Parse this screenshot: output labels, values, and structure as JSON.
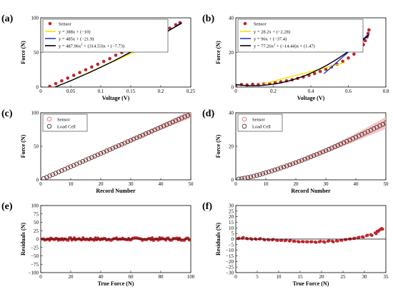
{
  "chart_data": [
    {
      "id": "a",
      "panel_label": "(a)",
      "type": "scatter",
      "xlabel": "Voltage (V)",
      "ylabel": "Force (N)",
      "xlim": [
        0,
        0.25
      ],
      "ylim": [
        0,
        100
      ],
      "xticks": [
        0,
        0.05,
        0.1,
        0.15,
        0.2,
        0.25
      ],
      "xtick_labels": [
        "0",
        "0.05",
        "0.1",
        "0.15",
        "0.2",
        "0.25"
      ],
      "yticks": [
        0,
        50,
        100
      ],
      "ytick_labels": [
        "0",
        "50",
        "100"
      ],
      "grid": false,
      "legend_placement": "top-left",
      "scatter": {
        "name": "Sensor",
        "color": "#c0242c",
        "x": [
          0.015,
          0.025,
          0.035,
          0.045,
          0.055,
          0.065,
          0.075,
          0.085,
          0.095,
          0.105,
          0.115,
          0.125,
          0.135,
          0.145,
          0.155,
          0.165,
          0.175,
          0.185,
          0.195,
          0.205,
          0.215,
          0.225,
          0.232
        ],
        "y": [
          1,
          5,
          9,
          13,
          17,
          21,
          25,
          29,
          33,
          37,
          41,
          46,
          50,
          54,
          58,
          63,
          67,
          72,
          76,
          81,
          85,
          90,
          93
        ]
      },
      "fits": [
        {
          "name": "y = 388x + (−10)",
          "color": "#f2e600",
          "kind": "linear",
          "coef": [
            388,
            -10
          ],
          "x_range": [
            0.06,
            0.16
          ]
        },
        {
          "name": "y = 485x + (−21.9)",
          "color": "#1f3fbf",
          "kind": "linear",
          "coef": [
            485,
            -21.9
          ],
          "x_range": [
            0.14,
            0.235
          ]
        },
        {
          "name": "y = 487.96x",
          "name_sup": "2",
          "name_rest": " + (314.53)x + (−7.73)",
          "color": "#000000",
          "kind": "quadratic",
          "coef": [
            487.96,
            314.53,
            -7.73
          ],
          "x_range": [
            0.02,
            0.235
          ]
        }
      ]
    },
    {
      "id": "b",
      "panel_label": "(b)",
      "type": "scatter",
      "xlabel": "Voltage (V)",
      "ylabel": "Force (N)",
      "xlim": [
        0,
        0.8
      ],
      "ylim": [
        0,
        40
      ],
      "xticks": [
        0,
        0.2,
        0.4,
        0.6,
        0.8
      ],
      "xtick_labels": [
        "0",
        "0.2",
        "0.4",
        "0.6",
        "0.8"
      ],
      "yticks": [
        0,
        20,
        40
      ],
      "ytick_labels": [
        "0",
        "20",
        "40"
      ],
      "grid": false,
      "legend_placement": "top-left",
      "scatter": {
        "name": "Sensor",
        "color": "#c0242c",
        "x": [
          0.0,
          0.03,
          0.06,
          0.09,
          0.12,
          0.15,
          0.18,
          0.21,
          0.24,
          0.27,
          0.3,
          0.33,
          0.36,
          0.39,
          0.42,
          0.45,
          0.48,
          0.51,
          0.54,
          0.57,
          0.6,
          0.63,
          0.66,
          0.68,
          0.69,
          0.7,
          0.705,
          0.71
        ],
        "y": [
          0.8,
          1.5,
          1.2,
          1.6,
          1.4,
          1.8,
          2.1,
          2.5,
          3.0,
          3.6,
          4.2,
          5.0,
          5.8,
          6.8,
          7.8,
          9.0,
          10.3,
          11.6,
          13.2,
          14.9,
          16.8,
          19.0,
          21.8,
          24.5,
          26.8,
          29.0,
          31.0,
          33.0
        ]
      },
      "fits": [
        {
          "name": "y = 28.2x + (−2.28)",
          "color": "#f2e600",
          "kind": "linear",
          "coef": [
            28.2,
            -2.28
          ],
          "x_range": [
            0.15,
            0.58
          ]
        },
        {
          "name": "y = 96x + (−37.4)",
          "color": "#1f3fbf",
          "kind": "linear",
          "coef": [
            96,
            -37.4
          ],
          "x_range": [
            0.47,
            0.71
          ]
        },
        {
          "name": "y = 77.26x",
          "name_sup": "2",
          "name_rest": " + (−14.44)x + (1.47)",
          "color": "#000000",
          "kind": "quadratic",
          "coef": [
            77.26,
            -14.44,
            1.47
          ],
          "x_range": [
            0.0,
            0.71
          ]
        }
      ]
    },
    {
      "id": "c",
      "panel_label": "(c)",
      "type": "line",
      "xlabel": "Record Number",
      "ylabel": "Force (N)",
      "xlim": [
        0,
        50
      ],
      "ylim": [
        0,
        100
      ],
      "xticks": [
        0,
        10,
        20,
        30,
        40,
        50
      ],
      "xtick_labels": [
        "0",
        "10",
        "20",
        "30",
        "40",
        "50"
      ],
      "yticks": [
        0,
        50,
        100
      ],
      "ytick_labels": [
        "0",
        "50",
        "100"
      ],
      "grid": false,
      "legend_placement": "top-left",
      "series": [
        {
          "name": "Sensor",
          "color": "#e06060",
          "marker": "open-circle",
          "band_color": "#f3b6b6",
          "model": {
            "kind": "linear",
            "start": 2,
            "end": 98
          },
          "band_halfwidth": [
            0.5,
            6
          ]
        },
        {
          "name": "Load Cell",
          "color": "#222222",
          "marker": "open-circle",
          "model": {
            "kind": "linear",
            "start": 2,
            "end": 98
          }
        }
      ],
      "n_points": 50
    },
    {
      "id": "d",
      "panel_label": "(d)",
      "type": "line",
      "xlabel": "Record Number",
      "ylabel": "Force (N)",
      "xlim": [
        0,
        50
      ],
      "ylim": [
        0,
        40
      ],
      "xticks": [
        0,
        10,
        20,
        30,
        40,
        50
      ],
      "xtick_labels": [
        "0",
        "10",
        "20",
        "30",
        "40",
        "50"
      ],
      "yticks": [
        0,
        20,
        40
      ],
      "ytick_labels": [
        "0",
        "20",
        "40"
      ],
      "grid": false,
      "legend_placement": "top-left",
      "series": [
        {
          "name": "Sensor",
          "color": "#e06060",
          "marker": "open-circle",
          "band_color": "#f3b6b6",
          "model": {
            "kind": "power",
            "start": 0.5,
            "end": 34,
            "exp": 1.3
          },
          "band_halfwidth": [
            0.3,
            3.5
          ]
        },
        {
          "name": "Load Cell",
          "color": "#222222",
          "marker": "open-circle",
          "model": {
            "kind": "power",
            "start": 0.5,
            "end": 34,
            "exp": 1.3
          }
        }
      ],
      "n_points": 50
    },
    {
      "id": "e",
      "panel_label": "(e)",
      "type": "scatter",
      "xlabel": "True Force (N)",
      "ylabel": "Residuals (N)",
      "xlim": [
        0,
        100
      ],
      "ylim": [
        -100,
        100
      ],
      "xticks": [
        0,
        20,
        40,
        60,
        80,
        100
      ],
      "xtick_labels": [
        "0",
        "20",
        "40",
        "60",
        "80",
        "100"
      ],
      "yticks": [
        -100,
        -75,
        -50,
        -25,
        0,
        25,
        50,
        75,
        100
      ],
      "ytick_labels": [
        "−100",
        "−75",
        "−50",
        "−25",
        "0",
        "25",
        "50",
        "75",
        "100"
      ],
      "grid": false,
      "reference_line": 0,
      "scatter": {
        "color": "#c0242c",
        "x_range": [
          1,
          99
        ],
        "n": 120,
        "spread": 4
      }
    },
    {
      "id": "f",
      "panel_label": "(f)",
      "type": "scatter",
      "xlabel": "True Force (N)",
      "ylabel": "Residuals (N)",
      "xlim": [
        0,
        35
      ],
      "ylim": [
        -30,
        30
      ],
      "xticks": [
        0,
        5,
        10,
        15,
        20,
        25,
        30,
        35
      ],
      "xtick_labels": [
        "0",
        "5",
        "10",
        "15",
        "20",
        "25",
        "30",
        "35"
      ],
      "yticks": [
        -30,
        -25,
        -20,
        -15,
        -10,
        -5,
        0,
        5,
        10,
        15,
        20,
        25,
        30
      ],
      "ytick_labels": [
        "−30",
        "−25",
        "−20",
        "−15",
        "−10",
        "−5",
        "0",
        "5",
        "10",
        "15",
        "20",
        "25",
        "30"
      ],
      "grid": false,
      "reference_line": 0,
      "scatter": {
        "color": "#c0242c",
        "x": [
          0.5,
          1.5,
          2.5,
          3.5,
          4.5,
          5.5,
          6.5,
          7.5,
          8.5,
          9.5,
          10.5,
          11.5,
          12.5,
          13.5,
          14.5,
          15.5,
          16.5,
          17.5,
          18.5,
          19.5,
          20.5,
          21.5,
          22.5,
          23.5,
          24.5,
          25.5,
          26.5,
          27.5,
          28.5,
          29.5,
          30.5,
          31.5,
          32.5,
          33.0,
          33.5,
          34.0
        ],
        "y": [
          0.5,
          0.8,
          0.6,
          0.4,
          0.2,
          0.0,
          -0.3,
          -0.5,
          -0.8,
          -1.0,
          -1.2,
          -1.5,
          -1.8,
          -2.0,
          -2.2,
          -2.3,
          -2.4,
          -2.5,
          -2.6,
          -2.5,
          -2.3,
          -2.0,
          -1.8,
          -1.5,
          -1.0,
          -0.5,
          0.0,
          0.5,
          1.2,
          2.0,
          3.0,
          4.0,
          5.5,
          7.0,
          8.0,
          9.5
        ]
      }
    }
  ]
}
